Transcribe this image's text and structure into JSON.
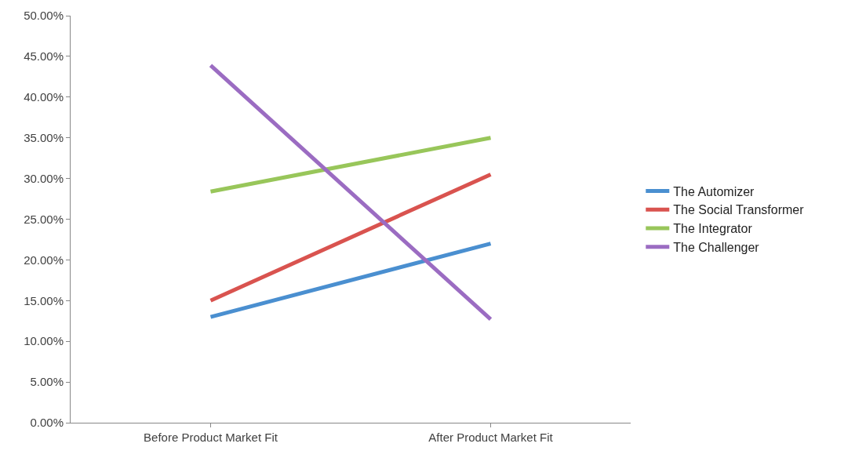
{
  "chart_data": {
    "type": "line",
    "categories": [
      "Before Product Market Fit",
      "After Product Market Fit"
    ],
    "series": [
      {
        "name": "The Automizer",
        "color": "#4a8fd0",
        "values": [
          13.0,
          22.0
        ]
      },
      {
        "name": "The Social Transformer",
        "color": "#d9534f",
        "values": [
          15.0,
          30.5
        ]
      },
      {
        "name": "The Integrator",
        "color": "#98c65a",
        "values": [
          28.4,
          35.0
        ]
      },
      {
        "name": "The Challenger",
        "color": "#9b6cc2",
        "values": [
          43.9,
          12.7
        ]
      }
    ],
    "ylim": [
      0,
      50
    ],
    "yticks": [
      {
        "value": 0,
        "label": "0.00%"
      },
      {
        "value": 5,
        "label": "5.00%"
      },
      {
        "value": 10,
        "label": "10.00%"
      },
      {
        "value": 15,
        "label": "15.00%"
      },
      {
        "value": 20,
        "label": "20.00%"
      },
      {
        "value": 25,
        "label": "25.00%"
      },
      {
        "value": 30,
        "label": "30.00%"
      },
      {
        "value": 35,
        "label": "35.00%"
      },
      {
        "value": 40,
        "label": "40.00%"
      },
      {
        "value": 45,
        "label": "45.00%"
      },
      {
        "value": 50,
        "label": "50.00%"
      }
    ],
    "legend": "right",
    "marker": "none",
    "line_style": "solid"
  }
}
